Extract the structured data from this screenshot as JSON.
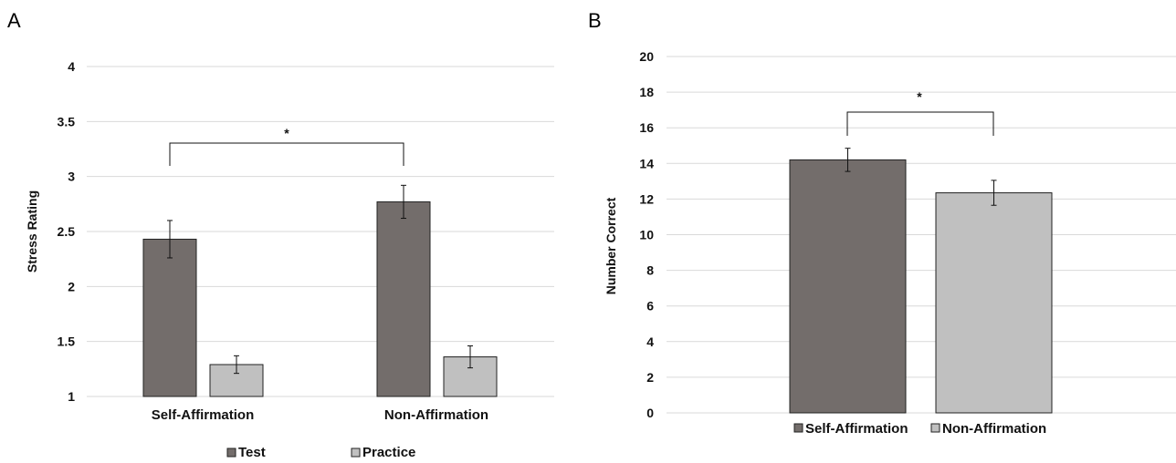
{
  "colors": {
    "test": "#736d6b",
    "practice": "#c0c0c0",
    "self_affirmation": "#736d6b",
    "non_affirmation": "#c0c0c0",
    "grid": "#d9d9d9"
  },
  "chart_data": [
    {
      "panel": "A",
      "type": "bar",
      "ylabel": "Stress Rating",
      "ylim": [
        1,
        4
      ],
      "yticks": [
        "1",
        "1.5",
        "2",
        "2.5",
        "3",
        "3.5",
        "4"
      ],
      "categories": [
        "Self-Affirmation",
        "Non-Affirmation"
      ],
      "series": [
        {
          "name": "Test",
          "values": [
            2.43,
            2.77
          ],
          "errors": [
            0.17,
            0.15
          ]
        },
        {
          "name": "Practice",
          "values": [
            1.29,
            1.36
          ],
          "errors": [
            0.08,
            0.1
          ]
        }
      ],
      "significance": {
        "label": "*",
        "between": "Test series across categories"
      },
      "legend_position": "bottom",
      "grid": true
    },
    {
      "panel": "B",
      "type": "bar",
      "ylabel": "Number Correct",
      "ylim": [
        0,
        20
      ],
      "yticks": [
        "0",
        "2",
        "4",
        "6",
        "8",
        "10",
        "12",
        "14",
        "16",
        "18",
        "20"
      ],
      "categories": [
        "Self-Affirmation",
        "Non-Affirmation"
      ],
      "values": [
        14.2,
        12.35
      ],
      "errors": [
        0.65,
        0.7
      ],
      "significance": {
        "label": "*",
        "between": "Self-Affirmation and Non-Affirmation"
      },
      "legend_position": "bottom",
      "grid": true
    }
  ]
}
